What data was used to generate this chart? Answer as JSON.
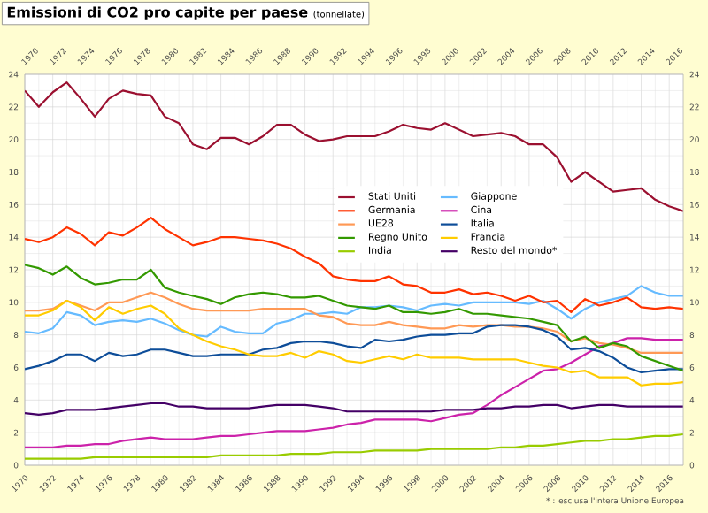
{
  "chart_data": {
    "type": "line",
    "title": "Emissioni di CO2 pro capite per paese",
    "subtitle": "(tonnellate)",
    "x": [
      1970,
      1971,
      1972,
      1973,
      1974,
      1975,
      1976,
      1977,
      1978,
      1979,
      1980,
      1981,
      1982,
      1983,
      1984,
      1985,
      1986,
      1987,
      1988,
      1989,
      1990,
      1991,
      1992,
      1993,
      1994,
      1995,
      1996,
      1997,
      1998,
      1999,
      2000,
      2001,
      2002,
      2003,
      2004,
      2005,
      2006,
      2007,
      2008,
      2009,
      2010,
      2011,
      2012,
      2013,
      2014,
      2015,
      2016,
      2017
    ],
    "series": [
      {
        "name": "Stati Uniti",
        "color": "#9b1030",
        "values": [
          23.0,
          22.0,
          22.9,
          23.5,
          22.5,
          21.4,
          22.5,
          23.0,
          22.8,
          22.7,
          21.4,
          21.0,
          19.7,
          19.4,
          20.1,
          20.1,
          19.7,
          20.2,
          20.9,
          20.9,
          20.3,
          19.9,
          20.0,
          20.2,
          20.2,
          20.2,
          20.5,
          20.9,
          20.7,
          20.6,
          21.0,
          20.6,
          20.2,
          20.3,
          20.4,
          20.2,
          19.7,
          19.7,
          18.9,
          17.4,
          18.0,
          17.4,
          16.8,
          16.9,
          17.0,
          16.3,
          15.9,
          15.6
        ]
      },
      {
        "name": "Giappone",
        "color": "#66bbff",
        "values": [
          8.2,
          8.1,
          8.4,
          9.4,
          9.2,
          8.6,
          8.8,
          8.9,
          8.8,
          9.0,
          8.7,
          8.3,
          8.0,
          7.9,
          8.5,
          8.2,
          8.1,
          8.1,
          8.7,
          8.9,
          9.3,
          9.3,
          9.4,
          9.3,
          9.7,
          9.7,
          9.8,
          9.7,
          9.5,
          9.8,
          9.9,
          9.8,
          10.0,
          10.0,
          10.0,
          10.0,
          9.9,
          10.1,
          9.6,
          9.0,
          9.6,
          10.0,
          10.2,
          10.4,
          11.0,
          10.6,
          10.4,
          10.4
        ]
      },
      {
        "name": "Germania",
        "color": "#ff3300",
        "values": [
          13.9,
          13.7,
          14.0,
          14.6,
          14.2,
          13.5,
          14.3,
          14.1,
          14.6,
          15.2,
          14.5,
          14.0,
          13.5,
          13.7,
          14.0,
          14.0,
          13.9,
          13.8,
          13.6,
          13.3,
          12.8,
          12.4,
          11.6,
          11.4,
          11.3,
          11.3,
          11.6,
          11.1,
          11.0,
          10.6,
          10.6,
          10.8,
          10.5,
          10.6,
          10.4,
          10.1,
          10.4,
          10.0,
          10.1,
          9.4,
          10.2,
          9.8,
          10.0,
          10.3,
          9.7,
          9.6,
          9.7,
          9.6
        ]
      },
      {
        "name": "Cina",
        "color": "#cc22aa",
        "values": [
          1.1,
          1.1,
          1.1,
          1.2,
          1.2,
          1.3,
          1.3,
          1.5,
          1.6,
          1.7,
          1.6,
          1.6,
          1.6,
          1.7,
          1.8,
          1.8,
          1.9,
          2.0,
          2.1,
          2.1,
          2.1,
          2.2,
          2.3,
          2.5,
          2.6,
          2.8,
          2.8,
          2.8,
          2.8,
          2.7,
          2.9,
          3.1,
          3.2,
          3.7,
          4.3,
          4.8,
          5.3,
          5.8,
          5.9,
          6.3,
          6.8,
          7.3,
          7.5,
          7.8,
          7.8,
          7.7,
          7.7,
          7.7
        ]
      },
      {
        "name": "UE28",
        "color": "#ff9955",
        "values": [
          9.5,
          9.5,
          9.6,
          10.1,
          9.8,
          9.5,
          10.0,
          10.0,
          10.3,
          10.6,
          10.3,
          9.9,
          9.6,
          9.5,
          9.5,
          9.5,
          9.5,
          9.6,
          9.6,
          9.6,
          9.6,
          9.2,
          9.1,
          8.7,
          8.6,
          8.6,
          8.8,
          8.6,
          8.5,
          8.4,
          8.4,
          8.6,
          8.5,
          8.6,
          8.6,
          8.5,
          8.5,
          8.4,
          8.2,
          7.6,
          7.8,
          7.5,
          7.4,
          7.2,
          6.9,
          6.9,
          6.9,
          6.9
        ]
      },
      {
        "name": "Italia",
        "color": "#0d4d99",
        "values": [
          5.9,
          6.1,
          6.4,
          6.8,
          6.8,
          6.4,
          6.9,
          6.7,
          6.8,
          7.1,
          7.1,
          6.9,
          6.7,
          6.7,
          6.8,
          6.8,
          6.8,
          7.1,
          7.2,
          7.5,
          7.6,
          7.6,
          7.5,
          7.3,
          7.2,
          7.7,
          7.6,
          7.7,
          7.9,
          8.0,
          8.0,
          8.1,
          8.1,
          8.5,
          8.6,
          8.6,
          8.5,
          8.3,
          7.9,
          7.1,
          7.2,
          7.0,
          6.6,
          6.0,
          5.7,
          5.8,
          5.9,
          5.9
        ]
      },
      {
        "name": "Regno Unito",
        "color": "#339900",
        "values": [
          12.3,
          12.1,
          11.7,
          12.2,
          11.5,
          11.1,
          11.2,
          11.4,
          11.4,
          12.0,
          10.9,
          10.6,
          10.4,
          10.2,
          9.9,
          10.3,
          10.5,
          10.6,
          10.5,
          10.3,
          10.3,
          10.4,
          10.1,
          9.8,
          9.7,
          9.6,
          9.8,
          9.4,
          9.4,
          9.3,
          9.4,
          9.6,
          9.3,
          9.3,
          9.2,
          9.1,
          9.0,
          8.8,
          8.6,
          7.6,
          7.9,
          7.2,
          7.5,
          7.3,
          6.7,
          6.4,
          6.1,
          5.8
        ]
      },
      {
        "name": "Francia",
        "color": "#ffcc00",
        "values": [
          9.2,
          9.2,
          9.5,
          10.1,
          9.7,
          8.9,
          9.7,
          9.3,
          9.6,
          9.8,
          9.3,
          8.4,
          8.0,
          7.6,
          7.3,
          7.1,
          6.8,
          6.7,
          6.7,
          6.9,
          6.6,
          7.0,
          6.8,
          6.4,
          6.3,
          6.5,
          6.7,
          6.5,
          6.8,
          6.6,
          6.6,
          6.6,
          6.5,
          6.5,
          6.5,
          6.5,
          6.3,
          6.1,
          6.0,
          5.7,
          5.8,
          5.4,
          5.4,
          5.4,
          4.9,
          5.0,
          5.0,
          5.1
        ]
      },
      {
        "name": "India",
        "color": "#99cc00",
        "values": [
          0.4,
          0.4,
          0.4,
          0.4,
          0.4,
          0.5,
          0.5,
          0.5,
          0.5,
          0.5,
          0.5,
          0.5,
          0.5,
          0.5,
          0.6,
          0.6,
          0.6,
          0.6,
          0.6,
          0.7,
          0.7,
          0.7,
          0.8,
          0.8,
          0.8,
          0.9,
          0.9,
          0.9,
          0.9,
          1.0,
          1.0,
          1.0,
          1.0,
          1.0,
          1.1,
          1.1,
          1.2,
          1.2,
          1.3,
          1.4,
          1.5,
          1.5,
          1.6,
          1.6,
          1.7,
          1.8,
          1.8,
          1.9
        ]
      },
      {
        "name": "Resto del mondo*",
        "color": "#440066",
        "values": [
          3.2,
          3.1,
          3.2,
          3.4,
          3.4,
          3.4,
          3.5,
          3.6,
          3.7,
          3.8,
          3.8,
          3.6,
          3.6,
          3.5,
          3.5,
          3.5,
          3.5,
          3.6,
          3.7,
          3.7,
          3.7,
          3.6,
          3.5,
          3.3,
          3.3,
          3.3,
          3.3,
          3.3,
          3.3,
          3.3,
          3.4,
          3.4,
          3.4,
          3.5,
          3.5,
          3.6,
          3.6,
          3.7,
          3.7,
          3.5,
          3.6,
          3.7,
          3.7,
          3.6,
          3.6,
          3.6,
          3.6,
          3.6
        ]
      }
    ],
    "xlim": [
      1970,
      2017
    ],
    "xticks": [
      1970,
      1972,
      1974,
      1976,
      1978,
      1980,
      1982,
      1984,
      1986,
      1988,
      1990,
      1992,
      1994,
      1996,
      1998,
      2000,
      2002,
      2004,
      2006,
      2008,
      2010,
      2012,
      2014,
      2016
    ],
    "x2lim": [
      1970,
      2017
    ],
    "x2ticks": [
      1970,
      1972,
      1974,
      1976,
      1978,
      1980,
      1982,
      1984,
      1986,
      1988,
      1990,
      1992,
      1994,
      1996,
      1998,
      2000,
      2002,
      2004,
      2006,
      2008,
      2010,
      2012,
      2014,
      2016
    ],
    "ylim": [
      0,
      24
    ],
    "yticks": [
      0,
      2,
      4,
      6,
      8,
      10,
      12,
      14,
      16,
      18,
      20,
      22,
      24
    ],
    "y2lim": [
      0,
      24
    ],
    "y2ticks": [
      0,
      2,
      4,
      6,
      8,
      10,
      12,
      14,
      16,
      18,
      20,
      22,
      24
    ],
    "grid": true,
    "legend": "right",
    "annotations": [
      "* : esclusa l'intera Unione Europea"
    ]
  }
}
